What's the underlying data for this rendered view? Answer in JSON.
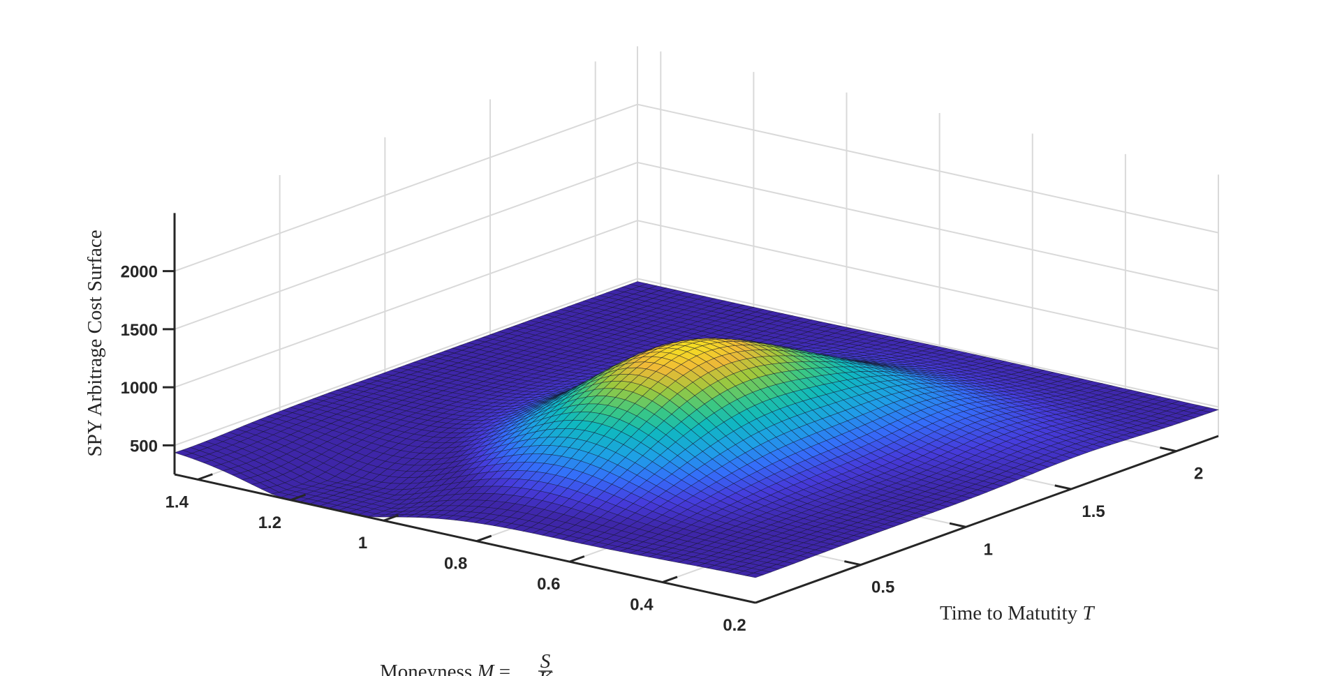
{
  "chart_data": {
    "type": "surface",
    "title": "",
    "colormap": "parula",
    "grid": true,
    "axes": {
      "x": {
        "label_prefix": "Moneyness ",
        "label_var": "M",
        "label_eq": " = ",
        "label_num": "S",
        "label_den": "K",
        "range": [
          0.2,
          1.45
        ],
        "ticks": [
          1.4,
          1.2,
          1,
          0.8,
          0.6,
          0.4,
          0.2
        ],
        "tick_labels": [
          "1.4",
          "1.2",
          "1",
          "0.8",
          "0.6",
          "0.4",
          "0.2"
        ]
      },
      "y": {
        "label_prefix": "Time to Matutity ",
        "label_var": "T",
        "range": [
          0,
          2.2
        ],
        "ticks": [
          0.5,
          1,
          1.5,
          2
        ],
        "tick_labels": [
          "0.5",
          "1",
          "1.5",
          "2"
        ]
      },
      "z": {
        "label": "SPY Arbitrage Cost Surface",
        "range": [
          250,
          2500
        ],
        "ticks": [
          500,
          1000,
          1500,
          2000
        ],
        "tick_labels": [
          "500",
          "1000",
          "1500",
          "2000"
        ]
      }
    },
    "surface": {
      "base_value": 475,
      "grid_resolution": [
        60,
        60
      ],
      "peak": {
        "moneyness": 0.78,
        "time": 0.95,
        "value": 1320
      },
      "dip": {
        "moneyness": 1.15,
        "time": 0.15,
        "value": 270
      }
    }
  }
}
